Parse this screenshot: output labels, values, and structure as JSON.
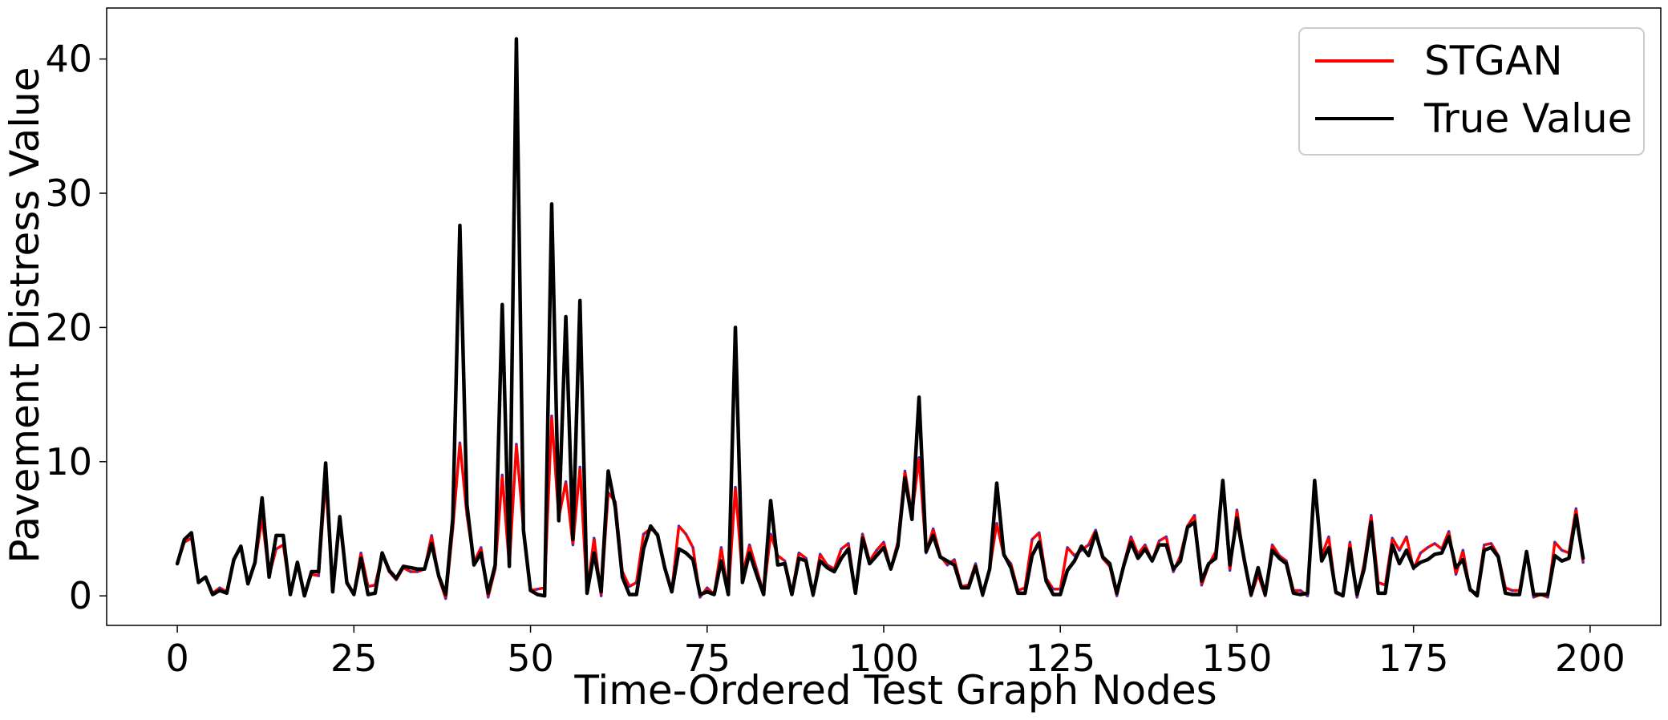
{
  "chart_data": {
    "type": "line",
    "title": "",
    "xlabel": "Time-Ordered Test Graph Nodes",
    "ylabel": "Pavement Distress Value",
    "xlim": [
      -10,
      210
    ],
    "ylim": [
      -2.2,
      43.8
    ],
    "x_ticks": [
      0,
      25,
      50,
      75,
      100,
      125,
      150,
      175,
      200
    ],
    "y_ticks": [
      0,
      10,
      20,
      30,
      40
    ],
    "grid": false,
    "legend_position": "top-right",
    "series": [
      {
        "name": "STGAN",
        "color": "#ff0000",
        "values": [
          2.4,
          4.0,
          4.3,
          1.0,
          1.4,
          0.2,
          0.6,
          0.3,
          2.6,
          3.7,
          0.9,
          2.4,
          5.8,
          1.5,
          3.5,
          3.8,
          0.2,
          2.3,
          0.2,
          1.6,
          1.5,
          8.6,
          0.4,
          5.5,
          0.9,
          0.2,
          3.2,
          0.7,
          0.8,
          3.1,
          1.8,
          1.2,
          2.1,
          1.8,
          1.8,
          2.0,
          4.5,
          1.4,
          -0.2,
          5.0,
          11.4,
          6.0,
          2.5,
          3.6,
          -0.1,
          2.0,
          9.0,
          2.2,
          11.3,
          5.0,
          0.4,
          0.5,
          0.6,
          13.4,
          5.8,
          8.5,
          3.8,
          9.6,
          0.2,
          4.3,
          0.0,
          7.7,
          7.0,
          1.8,
          0.7,
          1.0,
          4.6,
          5.0,
          4.6,
          2.0,
          0.4,
          5.2,
          4.6,
          3.6,
          -0.1,
          0.6,
          0.1,
          3.6,
          0.1,
          8.1,
          1.5,
          3.8,
          2.0,
          0.2,
          4.6,
          3.0,
          2.6,
          0.2,
          3.2,
          2.8,
          0.0,
          3.1,
          2.3,
          2.0,
          3.5,
          3.9,
          0.2,
          4.6,
          2.6,
          3.4,
          4.0,
          2.0,
          4.0,
          9.3,
          6.0,
          10.3,
          3.2,
          5.0,
          3.0,
          2.3,
          2.7,
          0.7,
          0.8,
          2.4,
          0.0,
          2.0,
          5.4,
          3.0,
          2.4,
          0.4,
          0.6,
          4.2,
          4.7,
          1.3,
          0.5,
          0.5,
          3.6,
          3.0,
          3.4,
          3.8,
          4.9,
          2.8,
          2.2,
          0.0,
          2.4,
          4.4,
          3.1,
          3.8,
          2.6,
          4.1,
          4.4,
          1.8,
          3.0,
          5.2,
          6.0,
          0.8,
          2.3,
          3.3,
          8.5,
          1.9,
          6.4,
          2.6,
          0.0,
          1.6,
          0.0,
          3.8,
          3.0,
          2.6,
          0.4,
          0.4,
          0.0,
          8.2,
          3.0,
          4.4,
          0.2,
          0.0,
          4.0,
          -0.1,
          2.4,
          6.0,
          1.0,
          0.8,
          4.3,
          3.4,
          4.4,
          2.0,
          3.2,
          3.6,
          3.9,
          3.5,
          4.8,
          1.6,
          3.4,
          0.4,
          0.2,
          3.8,
          3.9,
          3.0,
          0.6,
          0.4,
          0.4,
          3.3,
          -0.1,
          0.1,
          -0.1,
          4.0,
          3.4,
          3.2,
          6.5,
          2.5
        ]
      },
      {
        "name": "True Value",
        "color": "#000000",
        "values": [
          2.4,
          4.2,
          4.7,
          1.0,
          1.4,
          0.1,
          0.4,
          0.2,
          2.7,
          3.7,
          0.9,
          2.5,
          7.3,
          1.4,
          4.5,
          4.5,
          0.1,
          2.5,
          0.0,
          1.8,
          1.8,
          9.9,
          0.3,
          5.9,
          1.0,
          0.1,
          2.8,
          0.1,
          0.2,
          3.2,
          1.9,
          1.3,
          2.2,
          2.1,
          2.0,
          2.0,
          3.9,
          1.5,
          0.1,
          5.8,
          27.6,
          6.8,
          2.3,
          3.2,
          0.2,
          2.3,
          21.7,
          2.2,
          41.5,
          4.9,
          0.4,
          0.1,
          0.0,
          29.2,
          5.6,
          20.8,
          4.2,
          22.0,
          0.2,
          3.2,
          0.3,
          9.3,
          6.6,
          1.4,
          0.1,
          0.1,
          3.5,
          5.2,
          4.5,
          2.1,
          0.3,
          3.5,
          3.2,
          2.7,
          0.1,
          0.3,
          0.1,
          2.6,
          0.1,
          20.0,
          1.0,
          3.2,
          1.6,
          0.1,
          7.1,
          2.3,
          2.4,
          0.1,
          2.8,
          2.6,
          0.1,
          2.6,
          2.1,
          1.8,
          2.8,
          3.5,
          0.2,
          4.3,
          2.4,
          3.0,
          3.6,
          2.0,
          3.7,
          8.8,
          5.7,
          14.8,
          3.3,
          4.5,
          2.9,
          2.6,
          2.3,
          0.6,
          0.6,
          2.2,
          0.1,
          2.0,
          8.4,
          3.1,
          2.1,
          0.2,
          0.2,
          3.0,
          4.0,
          1.1,
          0.1,
          0.1,
          1.9,
          2.6,
          3.7,
          3.0,
          4.7,
          2.9,
          2.4,
          0.2,
          2.3,
          4.0,
          2.8,
          3.5,
          2.6,
          3.8,
          3.8,
          2.0,
          2.6,
          5.1,
          5.5,
          1.1,
          2.4,
          2.8,
          8.6,
          2.3,
          5.8,
          2.8,
          0.1,
          2.1,
          0.1,
          3.4,
          2.8,
          2.4,
          0.2,
          0.1,
          0.2,
          8.6,
          2.6,
          3.6,
          0.3,
          0.0,
          3.5,
          0.1,
          2.0,
          5.5,
          0.2,
          0.2,
          3.8,
          2.4,
          3.4,
          2.1,
          2.5,
          2.7,
          3.1,
          3.2,
          4.4,
          2.1,
          2.7,
          0.5,
          0.0,
          3.4,
          3.6,
          2.9,
          0.2,
          0.1,
          0.1,
          3.3,
          0.1,
          0.1,
          0.1,
          3.0,
          2.6,
          2.8,
          6.0,
          2.8
        ]
      }
    ]
  }
}
